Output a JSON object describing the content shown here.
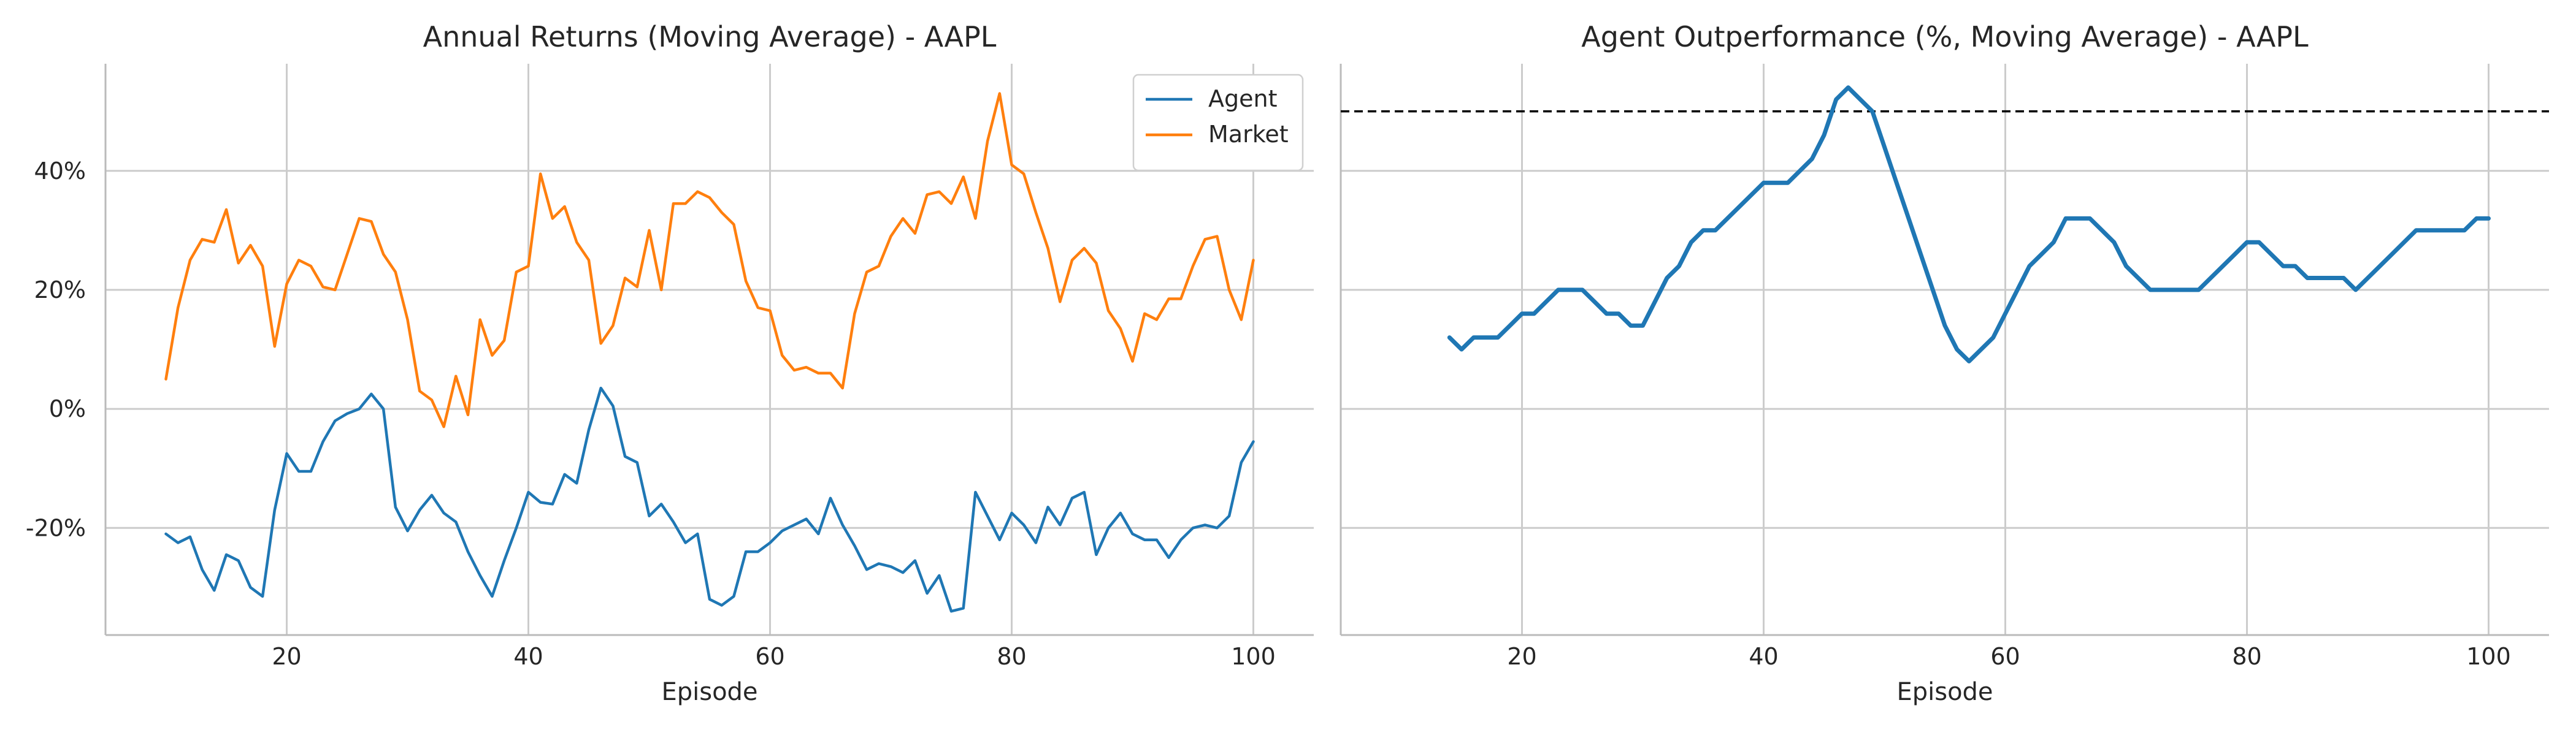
{
  "colors": {
    "agent": "#1f77b4",
    "market": "#ff7f0e",
    "grid": "#cccccc",
    "axis": "#bbbbbb",
    "reference": "#000000"
  },
  "chart_data": [
    {
      "type": "line",
      "title": "Annual Returns (Moving Average) - AAPL",
      "xlabel": "Episode",
      "ylabel": "",
      "xlim": [
        5,
        105
      ],
      "ylim": [
        -0.38,
        0.58
      ],
      "xticks": [
        20,
        40,
        60,
        80,
        100
      ],
      "xtick_labels": [
        "20",
        "40",
        "60",
        "80",
        "100"
      ],
      "yticks": [
        -0.2,
        0.0,
        0.2,
        0.4
      ],
      "ytick_labels": [
        "-20%",
        "0%",
        "20%",
        "40%"
      ],
      "show_ytick_labels": true,
      "grid": true,
      "legend": "top-right",
      "x": [
        10,
        11,
        12,
        13,
        14,
        15,
        16,
        17,
        18,
        19,
        20,
        21,
        22,
        23,
        24,
        25,
        26,
        27,
        28,
        29,
        30,
        31,
        32,
        33,
        34,
        35,
        36,
        37,
        38,
        39,
        40,
        41,
        42,
        43,
        44,
        45,
        46,
        47,
        48,
        49,
        50,
        51,
        52,
        53,
        54,
        55,
        56,
        57,
        58,
        59,
        60,
        61,
        62,
        63,
        64,
        65,
        66,
        67,
        68,
        69,
        70,
        71,
        72,
        73,
        74,
        75,
        76,
        77,
        78,
        79,
        80,
        81,
        82,
        83,
        84,
        85,
        86,
        87,
        88,
        89,
        90,
        91,
        92,
        93,
        94,
        95,
        96,
        97,
        98,
        99,
        100
      ],
      "series": [
        {
          "name": "Agent",
          "color_key": "agent",
          "values": [
            -0.21,
            -0.225,
            -0.215,
            -0.27,
            -0.305,
            -0.245,
            -0.255,
            -0.3,
            -0.315,
            -0.17,
            -0.075,
            -0.105,
            -0.105,
            -0.055,
            -0.02,
            -0.008,
            0.0,
            0.025,
            0.0,
            -0.165,
            -0.205,
            -0.17,
            -0.145,
            -0.175,
            -0.19,
            -0.24,
            -0.28,
            -0.315,
            -0.255,
            -0.2,
            -0.14,
            -0.157,
            -0.16,
            -0.11,
            -0.125,
            -0.035,
            0.035,
            0.005,
            -0.08,
            -0.09,
            -0.18,
            -0.16,
            -0.19,
            -0.225,
            -0.21,
            -0.32,
            -0.33,
            -0.315,
            -0.24,
            -0.24,
            -0.225,
            -0.205,
            -0.195,
            -0.185,
            -0.21,
            -0.15,
            -0.195,
            -0.23,
            -0.27,
            -0.26,
            -0.265,
            -0.275,
            -0.255,
            -0.31,
            -0.28,
            -0.34,
            -0.335,
            -0.14,
            -0.18,
            -0.22,
            -0.175,
            -0.195,
            -0.225,
            -0.165,
            -0.195,
            -0.15,
            -0.14,
            -0.245,
            -0.2,
            -0.175,
            -0.21,
            -0.22,
            -0.22,
            -0.25,
            -0.22,
            -0.2,
            -0.195,
            -0.2,
            -0.18,
            -0.09,
            -0.055
          ]
        },
        {
          "name": "Market",
          "color_key": "market",
          "values": [
            0.05,
            0.17,
            0.25,
            0.285,
            0.28,
            0.335,
            0.245,
            0.275,
            0.24,
            0.105,
            0.21,
            0.25,
            0.24,
            0.205,
            0.2,
            0.26,
            0.32,
            0.315,
            0.26,
            0.23,
            0.15,
            0.03,
            0.015,
            -0.03,
            0.055,
            -0.01,
            0.15,
            0.09,
            0.115,
            0.23,
            0.24,
            0.395,
            0.32,
            0.34,
            0.28,
            0.25,
            0.11,
            0.14,
            0.22,
            0.205,
            0.3,
            0.2,
            0.345,
            0.345,
            0.365,
            0.355,
            0.33,
            0.31,
            0.215,
            0.17,
            0.165,
            0.09,
            0.065,
            0.07,
            0.06,
            0.06,
            0.035,
            0.16,
            0.23,
            0.24,
            0.29,
            0.32,
            0.295,
            0.36,
            0.365,
            0.345,
            0.39,
            0.32,
            0.45,
            0.53,
            0.41,
            0.395,
            0.33,
            0.27,
            0.18,
            0.25,
            0.27,
            0.245,
            0.165,
            0.135,
            0.08,
            0.16,
            0.15,
            0.185,
            0.185,
            0.24,
            0.285,
            0.29,
            0.2,
            0.15,
            0.25
          ]
        }
      ]
    },
    {
      "type": "line",
      "title": "Agent Outperformance (%, Moving Average) - AAPL",
      "xlabel": "Episode",
      "ylabel": "",
      "xlim": [
        5,
        105
      ],
      "ylim": [
        -0.38,
        0.58
      ],
      "xticks": [
        20,
        40,
        60,
        80,
        100
      ],
      "xtick_labels": [
        "20",
        "40",
        "60",
        "80",
        "100"
      ],
      "yticks": [
        -0.2,
        0.0,
        0.2,
        0.4
      ],
      "show_ytick_labels": false,
      "grid": true,
      "reference_line": {
        "y": 0.5,
        "style": "dashed",
        "color_key": "reference"
      },
      "x": [
        14,
        15,
        16,
        17,
        18,
        19,
        20,
        21,
        22,
        23,
        24,
        25,
        26,
        27,
        28,
        29,
        30,
        31,
        32,
        33,
        34,
        35,
        36,
        37,
        38,
        39,
        40,
        41,
        42,
        43,
        44,
        45,
        46,
        47,
        48,
        49,
        50,
        51,
        52,
        53,
        54,
        55,
        56,
        57,
        58,
        59,
        60,
        61,
        62,
        63,
        64,
        65,
        66,
        67,
        68,
        69,
        70,
        71,
        72,
        73,
        74,
        75,
        76,
        77,
        78,
        79,
        80,
        81,
        82,
        83,
        84,
        85,
        86,
        87,
        88,
        89,
        90,
        91,
        92,
        93,
        94,
        95,
        96,
        97,
        98,
        99,
        100
      ],
      "series": [
        {
          "name": "",
          "color_key": "agent",
          "values": [
            0.12,
            0.1,
            0.12,
            0.12,
            0.12,
            0.14,
            0.16,
            0.16,
            0.18,
            0.2,
            0.2,
            0.2,
            0.18,
            0.16,
            0.16,
            0.14,
            0.14,
            0.18,
            0.22,
            0.24,
            0.28,
            0.3,
            0.3,
            0.32,
            0.34,
            0.36,
            0.38,
            0.38,
            0.38,
            0.4,
            0.42,
            0.46,
            0.52,
            0.54,
            0.52,
            0.5,
            0.44,
            0.38,
            0.32,
            0.26,
            0.2,
            0.14,
            0.1,
            0.08,
            0.1,
            0.12,
            0.16,
            0.2,
            0.24,
            0.26,
            0.28,
            0.32,
            0.32,
            0.32,
            0.3,
            0.28,
            0.24,
            0.22,
            0.2,
            0.2,
            0.2,
            0.2,
            0.2,
            0.22,
            0.24,
            0.26,
            0.28,
            0.28,
            0.26,
            0.24,
            0.24,
            0.22,
            0.22,
            0.22,
            0.22,
            0.2,
            0.22,
            0.24,
            0.26,
            0.28,
            0.3,
            0.3,
            0.3,
            0.3,
            0.3,
            0.32,
            0.32
          ]
        }
      ]
    }
  ]
}
